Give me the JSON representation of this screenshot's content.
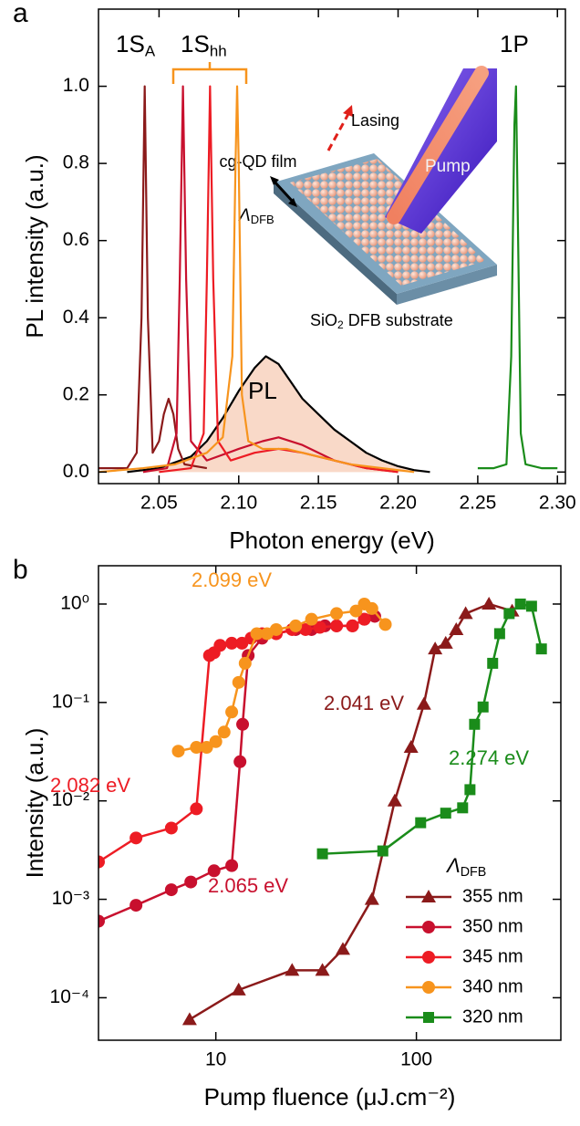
{
  "chart_data": [
    {
      "type": "line",
      "panel": "a",
      "xlabel": "Photon energy (eV)",
      "ylabel": "PL intensity (a.u.)",
      "xlim": [
        2.012,
        2.305
      ],
      "ylim": [
        -0.03,
        1.2
      ],
      "xticks": [
        2.05,
        {
          "value": 2.1,
          "label": "2.10"
        },
        2.15,
        {
          "value": 2.2,
          "label": "2.20"
        },
        2.25,
        {
          "value": 2.3,
          "label": "2.30"
        }
      ],
      "yticks": [
        {
          "value": 0,
          "label": "0.0"
        },
        0.2,
        0.4,
        0.6,
        0.8,
        {
          "value": 1,
          "label": "1.0"
        }
      ],
      "series": [
        {
          "color": "#000000",
          "fill": "#f9d9c8",
          "x": [
            2.03,
            2.05,
            2.07,
            2.08,
            2.09,
            2.1,
            2.11,
            2.117,
            2.125,
            2.13,
            2.14,
            2.15,
            2.16,
            2.17,
            2.18,
            2.19,
            2.2,
            2.21,
            2.22
          ],
          "values": [
            0.0,
            0.01,
            0.04,
            0.08,
            0.14,
            0.21,
            0.27,
            0.3,
            0.28,
            0.25,
            0.19,
            0.15,
            0.11,
            0.08,
            0.05,
            0.03,
            0.015,
            0.005,
            0.0
          ]
        },
        {
          "color": "#8b1a1a",
          "x": [
            2.012,
            2.03,
            2.036,
            2.039,
            2.041,
            2.043,
            2.046,
            2.05,
            2.053,
            2.056,
            2.059,
            2.062,
            2.066,
            2.08
          ],
          "values": [
            0.01,
            0.01,
            0.05,
            0.4,
            1.0,
            0.4,
            0.05,
            0.08,
            0.15,
            0.19,
            0.15,
            0.06,
            0.02,
            0.01
          ]
        },
        {
          "color": "#c8102e",
          "x": [
            2.04,
            2.055,
            2.061,
            2.063,
            2.065,
            2.067,
            2.07,
            2.08,
            2.1,
            2.115,
            2.125,
            2.14,
            2.16,
            2.18,
            2.2
          ],
          "values": [
            0.0,
            0.01,
            0.1,
            0.5,
            1.0,
            0.5,
            0.08,
            0.03,
            0.06,
            0.08,
            0.09,
            0.07,
            0.03,
            0.01,
            0.0
          ]
        },
        {
          "color": "#ed1c24",
          "x": [
            2.05,
            2.07,
            2.078,
            2.08,
            2.082,
            2.084,
            2.087,
            2.095,
            2.11,
            2.125,
            2.14,
            2.16,
            2.18,
            2.2
          ],
          "values": [
            0.0,
            0.01,
            0.1,
            0.5,
            1.0,
            0.5,
            0.08,
            0.03,
            0.05,
            0.06,
            0.05,
            0.03,
            0.01,
            0.0
          ]
        },
        {
          "color": "#f7941d",
          "x": [
            2.012,
            2.04,
            2.06,
            2.08,
            2.09,
            2.096,
            2.098,
            2.099,
            2.1,
            2.102,
            2.106,
            2.115,
            2.13,
            2.15,
            2.17,
            2.19,
            2.21
          ],
          "values": [
            0.0,
            0.01,
            0.02,
            0.05,
            0.09,
            0.3,
            0.8,
            1.0,
            0.8,
            0.2,
            0.08,
            0.06,
            0.06,
            0.04,
            0.02,
            0.01,
            0.0
          ]
        },
        {
          "color": "#1a8c1a",
          "x": [
            2.25,
            2.26,
            2.268,
            2.271,
            2.273,
            2.274,
            2.275,
            2.277,
            2.28,
            2.29,
            2.3
          ],
          "values": [
            0.01,
            0.01,
            0.02,
            0.3,
            0.9,
            1.0,
            0.7,
            0.1,
            0.02,
            0.01,
            0.01
          ]
        }
      ],
      "annotations": [
        {
          "text": "1S",
          "sub": "A"
        },
        {
          "text": "1S",
          "sub": "hh"
        },
        {
          "text": "1P"
        },
        {
          "text": "PL"
        }
      ],
      "inset": {
        "lasing": "Lasing",
        "pump": "Pump",
        "film": "cg-QD film",
        "period": {
          "text": "Λ",
          "sub": "DFB"
        },
        "substrate": {
          "text": "SiO",
          "sub": "2",
          "rest": " DFB substrate"
        }
      }
    },
    {
      "type": "line",
      "panel": "b",
      "xscale": "log",
      "yscale": "log",
      "xlabel": "Pump fluence (μJ.cm⁻²)",
      "ylabel": "Intensity (a.u.)",
      "xlim": [
        2.6,
        525
      ],
      "ylim": [
        3.7e-05,
        2.45
      ],
      "xticks": [
        10,
        100
      ],
      "yticks": [
        {
          "value": 0.0001,
          "label": "10⁻⁴"
        },
        {
          "value": 0.001,
          "label": "10⁻³"
        },
        {
          "value": 0.01,
          "label": "10⁻²"
        },
        {
          "value": 0.1,
          "label": "10⁻¹"
        },
        {
          "value": 1,
          "label": "10⁰"
        }
      ],
      "series": [
        {
          "name": "355 nm",
          "color": "#8b1a1a",
          "marker": "triangle",
          "x": [
            7.4,
            13,
            24,
            34,
            43,
            60,
            78,
            94,
            109,
            124,
            140,
            158,
            176,
            230,
            300
          ],
          "values": [
            6e-05,
            0.00012,
            0.00019,
            0.00019,
            0.00031,
            0.001,
            0.01,
            0.035,
            0.096,
            0.35,
            0.4,
            0.55,
            0.8,
            1.0,
            0.85
          ]
        },
        {
          "name": "350 nm",
          "color": "#c8102e",
          "marker": "circle",
          "x": [
            2.6,
            4,
            6,
            7.5,
            9.8,
            12,
            13.2,
            13.6,
            14.5,
            17,
            20,
            25,
            30,
            35,
            40,
            48,
            55,
            62
          ],
          "values": [
            0.0006,
            0.00087,
            0.00125,
            0.0015,
            0.00195,
            0.0022,
            0.025,
            0.06,
            0.3,
            0.45,
            0.5,
            0.55,
            0.55,
            0.6,
            0.6,
            0.6,
            0.7,
            0.75
          ]
        },
        {
          "name": "345 nm",
          "color": "#ed1c24",
          "marker": "circle",
          "x": [
            2.6,
            4,
            6,
            8,
            9.3,
            9.8,
            10.5,
            12,
            13.5,
            15,
            17,
            20,
            24,
            28,
            33,
            40,
            48,
            55
          ],
          "values": [
            0.0024,
            0.0042,
            0.0053,
            0.0083,
            0.3,
            0.32,
            0.38,
            0.4,
            0.4,
            0.45,
            0.5,
            0.5,
            0.55,
            0.55,
            0.58,
            0.6,
            0.6,
            0.7
          ]
        },
        {
          "name": "340 nm",
          "color": "#f7941d",
          "marker": "circle",
          "x": [
            6.5,
            8,
            9,
            10,
            11,
            12,
            13,
            14,
            16,
            18,
            20,
            25,
            30,
            40,
            50,
            55,
            60,
            70
          ],
          "values": [
            0.032,
            0.035,
            0.035,
            0.04,
            0.05,
            0.08,
            0.16,
            0.25,
            0.5,
            0.5,
            0.55,
            0.6,
            0.7,
            0.8,
            0.85,
            1.0,
            0.9,
            0.62
          ]
        },
        {
          "name": "320 nm",
          "color": "#1a8c1a",
          "marker": "square",
          "x": [
            34,
            68,
            105,
            140,
            170,
            185,
            195,
            215,
            240,
            260,
            290,
            330,
            375,
            420
          ],
          "values": [
            0.0029,
            0.0031,
            0.006,
            0.0075,
            0.0085,
            0.013,
            0.06,
            0.09,
            0.25,
            0.5,
            0.8,
            1.0,
            0.95,
            0.35
          ]
        }
      ],
      "annotations": [
        {
          "text": "2.099 eV",
          "color": "#f7941d"
        },
        {
          "text": "2.082 eV",
          "color": "#ed1c24"
        },
        {
          "text": "2.065 eV",
          "color": "#c8102e"
        },
        {
          "text": "2.041 eV",
          "color": "#8b1a1a"
        },
        {
          "text": "2.274 eV",
          "color": "#1a8c1a"
        }
      ],
      "legend": {
        "position": "lower right",
        "title": {
          "text": "Λ",
          "sub": "DFB"
        }
      }
    }
  ]
}
